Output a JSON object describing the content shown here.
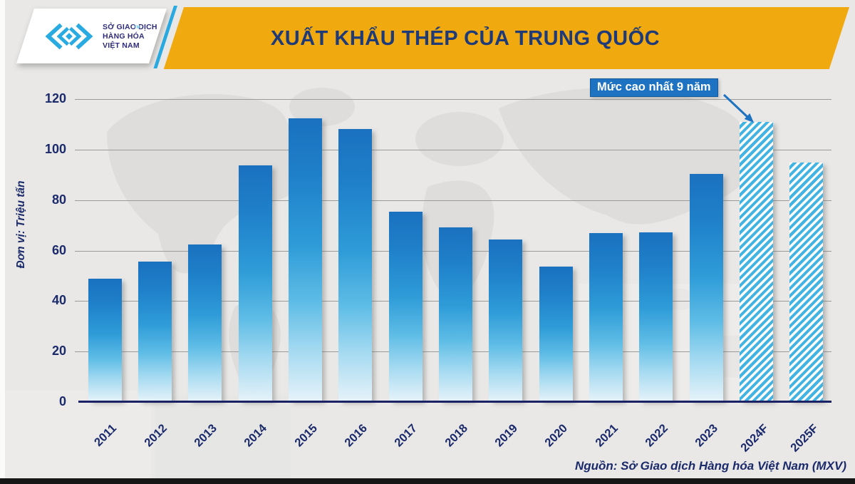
{
  "header": {
    "title": "XUẤT KHẨU THÉP CỦA TRUNG QUỐC",
    "logo": {
      "line1": "SỞ GIAO DỊCH",
      "line2": "HÀNG HÓA",
      "line3": "VIỆT NAM",
      "trademark": "TM"
    }
  },
  "colors": {
    "band_gold": "#F0A90E",
    "title_navy": "#1E3A78",
    "logo_indigo": "#2E2C7A",
    "logo_cyan": "#29ABE2",
    "axis_navy": "#1B2A6B",
    "grid_gray": "#9B9B99",
    "zero_axis_navy": "#1B2366",
    "bar_blue_top": "#1A72C0",
    "hatch_cyan": "#41B4E4",
    "annotation_blue": "#1D72C2",
    "background": "#E9E8E6"
  },
  "chart_data": {
    "type": "bar",
    "title": "XUẤT KHẨU THÉP CỦA TRUNG QUỐC",
    "ylabel": "Đơn vị: Triệu tấn",
    "xlabel": "",
    "categories": [
      "2011",
      "2012",
      "2013",
      "2014",
      "2015",
      "2016",
      "2017",
      "2018",
      "2019",
      "2020",
      "2021",
      "2022",
      "2023",
      "2024F",
      "2025F"
    ],
    "values": [
      48.9,
      55.7,
      62.3,
      93.8,
      112.4,
      108.1,
      75.4,
      69.3,
      64.3,
      53.7,
      66.9,
      67.3,
      90.3,
      111,
      95
    ],
    "hatched_categories": [
      "2024F",
      "2025F"
    ],
    "ylim": [
      0,
      120
    ],
    "yticks": [
      0,
      20,
      40,
      60,
      80,
      100,
      120
    ],
    "grid": true,
    "legend_position": "none",
    "annotation": {
      "text": "Mức cao nhất 9 năm",
      "target": "2024F"
    },
    "source": "Nguồn: Sở Giao dịch Hàng hóa Việt Nam (MXV)"
  }
}
